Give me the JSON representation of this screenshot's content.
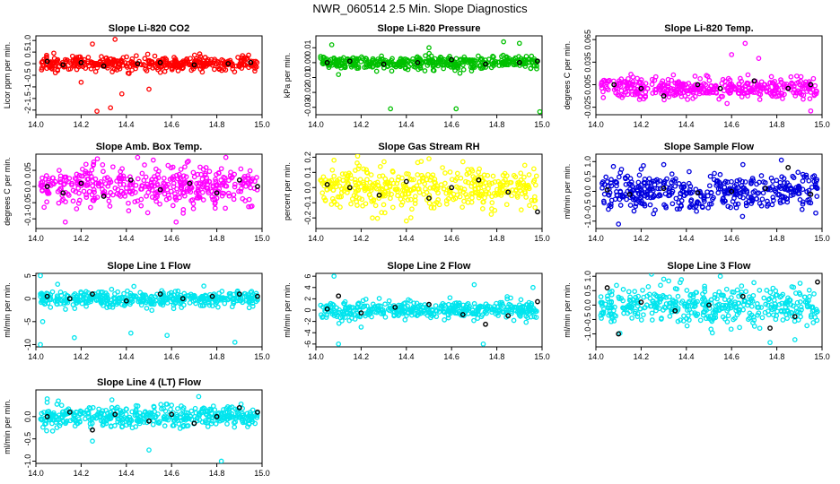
{
  "page": {
    "title": "NWR_060514  2.5 Min. Slope Diagnostics"
  },
  "chart_data": [
    {
      "id": "co2",
      "type": "scatter",
      "title": "Slope Li-820 CO2",
      "ylabel": "Licor ppm per min.",
      "color": "#ff0000",
      "xlim": [
        14.0,
        15.0
      ],
      "ylim": [
        -2.2,
        1.2
      ],
      "xticks": [
        14.0,
        14.2,
        14.4,
        14.6,
        14.8,
        15.0
      ],
      "yticks": [
        -2,
        -1.5,
        -1,
        -0.5,
        0,
        0.5,
        1
      ],
      "ytick_labels": [
        "-2",
        "-1.5",
        "-1",
        "-0.5",
        "0",
        "0.5",
        "1.0"
      ],
      "spread": 0.18,
      "n": 420,
      "outliers": [
        [
          14.25,
          0.85
        ],
        [
          14.33,
          -1.9
        ],
        [
          14.38,
          -1.3
        ],
        [
          14.5,
          -1.1
        ],
        [
          14.27,
          -2.05
        ],
        [
          14.2,
          -0.8
        ],
        [
          14.35,
          1.05
        ]
      ],
      "black": [
        [
          14.05,
          0.1
        ],
        [
          14.12,
          -0.05
        ],
        [
          14.2,
          0.05
        ],
        [
          14.3,
          -0.1
        ],
        [
          14.45,
          0.0
        ],
        [
          14.55,
          0.05
        ],
        [
          14.7,
          -0.05
        ],
        [
          14.85,
          0.0
        ],
        [
          14.95,
          0.05
        ]
      ]
    },
    {
      "id": "pressure",
      "type": "scatter",
      "title": "Slope Li-820 Pressure",
      "ylabel": "kPa per min.",
      "color": "#00c000",
      "xlim": [
        14.0,
        15.0
      ],
      "ylim": [
        -0.035,
        0.018
      ],
      "xticks": [
        14.0,
        14.2,
        14.4,
        14.6,
        14.8,
        15.0
      ],
      "yticks": [
        -0.03,
        -0.02,
        -0.01,
        0.0,
        0.01
      ],
      "ytick_labels": [
        "-0.03",
        "-0.02",
        "-0.01",
        "0.00",
        "0.01"
      ],
      "spread": 0.0025,
      "n": 420,
      "outliers": [
        [
          14.07,
          0.012
        ],
        [
          14.1,
          -0.008
        ],
        [
          14.33,
          -0.031
        ],
        [
          14.62,
          -0.031
        ],
        [
          14.99,
          -0.033
        ],
        [
          14.5,
          0.01
        ],
        [
          14.83,
          0.014
        ],
        [
          14.9,
          0.013
        ]
      ],
      "black": [
        [
          14.05,
          0.0
        ],
        [
          14.15,
          0.001
        ],
        [
          14.3,
          -0.001
        ],
        [
          14.45,
          0.0
        ],
        [
          14.6,
          0.002
        ],
        [
          14.75,
          -0.001
        ],
        [
          14.9,
          0.0
        ],
        [
          14.98,
          0.001
        ]
      ]
    },
    {
      "id": "temp",
      "type": "scatter",
      "title": "Slope Li-820 Temp.",
      "ylabel": "degrees C per min.",
      "color": "#ff00ff",
      "xlim": [
        14.0,
        15.0
      ],
      "ylim": [
        -0.035,
        0.07
      ],
      "xticks": [
        14.0,
        14.2,
        14.4,
        14.6,
        14.8,
        15.0
      ],
      "yticks": [
        -0.025,
        0.005,
        0.035,
        0.065
      ],
      "ytick_labels": [
        "-0.025",
        "0.005",
        "0.035",
        "0.065"
      ],
      "spread": 0.008,
      "n": 420,
      "outliers": [
        [
          14.66,
          0.06
        ],
        [
          14.58,
          -0.02
        ],
        [
          14.95,
          -0.03
        ],
        [
          14.72,
          0.04
        ],
        [
          14.6,
          0.045
        ]
      ],
      "black": [
        [
          14.08,
          0.005
        ],
        [
          14.2,
          0.0
        ],
        [
          14.3,
          -0.01
        ],
        [
          14.45,
          0.005
        ],
        [
          14.55,
          0.0
        ],
        [
          14.7,
          0.01
        ],
        [
          14.85,
          0.0
        ],
        [
          14.95,
          0.005
        ]
      ]
    },
    {
      "id": "box",
      "type": "scatter",
      "title": "Slope Amb. Box Temp.",
      "ylabel": "degrees C per min.",
      "color": "#ff00ff",
      "xlim": [
        14.0,
        15.0
      ],
      "ylim": [
        -0.13,
        0.1
      ],
      "xticks": [
        14.0,
        14.2,
        14.4,
        14.6,
        14.8,
        15.0
      ],
      "yticks": [
        -0.1,
        -0.05,
        0.0,
        0.05
      ],
      "ytick_labels": [
        "-0.1",
        "-0.05",
        "0.0",
        "0.05"
      ],
      "spread": 0.035,
      "n": 420,
      "outliers": [
        [
          14.45,
          0.09
        ],
        [
          14.84,
          0.09
        ],
        [
          14.13,
          -0.11
        ],
        [
          14.62,
          -0.11
        ]
      ],
      "black": [
        [
          14.05,
          0.0
        ],
        [
          14.12,
          -0.02
        ],
        [
          14.2,
          0.01
        ],
        [
          14.3,
          -0.03
        ],
        [
          14.42,
          0.02
        ],
        [
          14.55,
          -0.01
        ],
        [
          14.68,
          0.01
        ],
        [
          14.8,
          -0.02
        ],
        [
          14.9,
          0.02
        ],
        [
          14.98,
          0.0
        ]
      ]
    },
    {
      "id": "rh",
      "type": "scatter",
      "title": "Slope Gas Stream RH",
      "ylabel": "percent per min.",
      "color": "#ffff00",
      "xlim": [
        14.0,
        15.0
      ],
      "ylim": [
        -0.27,
        0.22
      ],
      "xticks": [
        14.0,
        14.2,
        14.4,
        14.6,
        14.8,
        15.0
      ],
      "yticks": [
        -0.2,
        -0.1,
        0.0,
        0.1,
        0.2
      ],
      "ytick_labels": [
        "-0.2",
        "-0.1",
        "0.0",
        "0.1",
        "0.2"
      ],
      "spread": 0.08,
      "n": 420,
      "outliers": [
        [
          14.08,
          0.18
        ],
        [
          14.4,
          -0.22
        ],
        [
          14.5,
          0.19
        ],
        [
          14.65,
          0.17
        ],
        [
          14.25,
          -0.2
        ]
      ],
      "black": [
        [
          14.05,
          0.02
        ],
        [
          14.15,
          0.0
        ],
        [
          14.28,
          -0.05
        ],
        [
          14.4,
          0.04
        ],
        [
          14.5,
          -0.07
        ],
        [
          14.6,
          0.0
        ],
        [
          14.72,
          0.05
        ],
        [
          14.85,
          -0.03
        ],
        [
          14.98,
          -0.16
        ]
      ]
    },
    {
      "id": "sample",
      "type": "scatter",
      "title": "Slope Sample Flow",
      "ylabel": "ml/min per min.",
      "color": "#0000dd",
      "xlim": [
        14.0,
        15.0
      ],
      "ylim": [
        -1.25,
        1.25
      ],
      "xticks": [
        14.0,
        14.2,
        14.4,
        14.6,
        14.8,
        15.0
      ],
      "yticks": [
        -1.0,
        -0.5,
        0.0,
        0.5,
        1.0
      ],
      "ytick_labels": [
        "-1.0",
        "-0.5",
        "0.0",
        "0.5",
        "1.0"
      ],
      "spread": 0.35,
      "n": 420,
      "outliers": [
        [
          14.1,
          -1.1
        ],
        [
          14.82,
          1.05
        ],
        [
          14.65,
          0.9
        ],
        [
          14.3,
          0.9
        ]
      ],
      "black": [
        [
          14.05,
          0.05
        ],
        [
          14.15,
          -0.1
        ],
        [
          14.3,
          0.1
        ],
        [
          14.45,
          -0.05
        ],
        [
          14.6,
          0.0
        ],
        [
          14.75,
          0.1
        ],
        [
          14.85,
          0.8
        ],
        [
          14.95,
          -0.1
        ]
      ]
    },
    {
      "id": "line1",
      "type": "scatter",
      "title": "Slope Line 1 Flow",
      "ylabel": "ml/min per min.",
      "color": "#00e5ee",
      "xlim": [
        14.0,
        15.0
      ],
      "ylim": [
        -10.5,
        5.5
      ],
      "xticks": [
        14.0,
        14.2,
        14.4,
        14.6,
        14.8,
        15.0
      ],
      "yticks": [
        -10,
        -5,
        0,
        5
      ],
      "ytick_labels": [
        "-10",
        "-5",
        "0",
        "5"
      ],
      "spread": 1.0,
      "n": 420,
      "outliers": [
        [
          14.02,
          5
        ],
        [
          14.03,
          -5
        ],
        [
          14.02,
          -10
        ],
        [
          14.17,
          -8.5
        ],
        [
          14.42,
          -7.5
        ],
        [
          14.58,
          -8
        ],
        [
          14.88,
          -9.5
        ]
      ],
      "black": [
        [
          14.05,
          0.5
        ],
        [
          14.15,
          0.0
        ],
        [
          14.25,
          1.0
        ],
        [
          14.4,
          -0.5
        ],
        [
          14.55,
          1.0
        ],
        [
          14.65,
          0.0
        ],
        [
          14.78,
          0.5
        ],
        [
          14.9,
          1.0
        ],
        [
          14.98,
          0.5
        ]
      ]
    },
    {
      "id": "line2",
      "type": "scatter",
      "title": "Slope Line 2 Flow",
      "ylabel": "ml/min per min.",
      "color": "#00e5ee",
      "xlim": [
        14.0,
        15.0
      ],
      "ylim": [
        -6.5,
        6.5
      ],
      "xticks": [
        14.0,
        14.2,
        14.4,
        14.6,
        14.8,
        15.0
      ],
      "yticks": [
        -6,
        -4,
        -2,
        0,
        2,
        4,
        6
      ],
      "ytick_labels": [
        "-6",
        "-4",
        "-2",
        "0",
        "2",
        "4",
        "6"
      ],
      "spread": 0.9,
      "n": 420,
      "outliers": [
        [
          14.08,
          6
        ],
        [
          14.1,
          -6
        ],
        [
          14.74,
          -6
        ],
        [
          14.7,
          4.5
        ],
        [
          14.96,
          4
        ],
        [
          14.2,
          -3
        ]
      ],
      "black": [
        [
          14.05,
          0.2
        ],
        [
          14.1,
          2.5
        ],
        [
          14.2,
          -0.5
        ],
        [
          14.35,
          0.5
        ],
        [
          14.5,
          1.0
        ],
        [
          14.65,
          -0.8
        ],
        [
          14.75,
          -2.5
        ],
        [
          14.85,
          -1.0
        ],
        [
          14.98,
          1.5
        ]
      ]
    },
    {
      "id": "line3",
      "type": "scatter",
      "title": "Slope Line 3 Flow",
      "ylabel": "ml/min per min.",
      "color": "#00e5ee",
      "xlim": [
        14.0,
        15.0
      ],
      "ylim": [
        -1.45,
        1.1
      ],
      "xticks": [
        14.0,
        14.2,
        14.4,
        14.6,
        14.8,
        15.0
      ],
      "yticks": [
        -1.0,
        -0.5,
        0.0,
        0.5,
        1.0
      ],
      "ytick_labels": [
        "-1.0",
        "-0.5",
        "0.0",
        "0.5",
        "1.0"
      ],
      "spread": 0.38,
      "n": 420,
      "outliers": [
        [
          14.77,
          -1.3
        ],
        [
          14.88,
          -1.2
        ],
        [
          14.55,
          1.0
        ],
        [
          14.3,
          0.9
        ]
      ],
      "black": [
        [
          14.05,
          0.6
        ],
        [
          14.1,
          -1.0
        ],
        [
          14.2,
          0.1
        ],
        [
          14.35,
          -0.2
        ],
        [
          14.5,
          0.0
        ],
        [
          14.65,
          0.3
        ],
        [
          14.77,
          -0.8
        ],
        [
          14.88,
          -0.4
        ],
        [
          14.98,
          0.8
        ]
      ]
    },
    {
      "id": "line4",
      "type": "scatter",
      "title": "Slope Line 4 (LT) Flow",
      "ylabel": "ml/min per min.",
      "color": "#00e5ee",
      "xlim": [
        14.0,
        15.0
      ],
      "ylim": [
        -1.05,
        0.6
      ],
      "xticks": [
        14.0,
        14.2,
        14.4,
        14.6,
        14.8,
        15.0
      ],
      "yticks": [
        -1.0,
        -0.5,
        0.0
      ],
      "ytick_labels": [
        "-1.0",
        "-0.5",
        "0.0"
      ],
      "spread": 0.13,
      "n": 420,
      "outliers": [
        [
          14.25,
          -0.55
        ],
        [
          14.5,
          -0.75
        ],
        [
          14.82,
          -1.0
        ],
        [
          14.05,
          0.4
        ],
        [
          14.72,
          0.45
        ]
      ],
      "black": [
        [
          14.05,
          0.0
        ],
        [
          14.15,
          0.1
        ],
        [
          14.25,
          -0.3
        ],
        [
          14.35,
          0.05
        ],
        [
          14.5,
          -0.1
        ],
        [
          14.6,
          0.05
        ],
        [
          14.7,
          -0.15
        ],
        [
          14.8,
          0.0
        ],
        [
          14.9,
          0.2
        ],
        [
          14.98,
          0.1
        ]
      ]
    }
  ]
}
